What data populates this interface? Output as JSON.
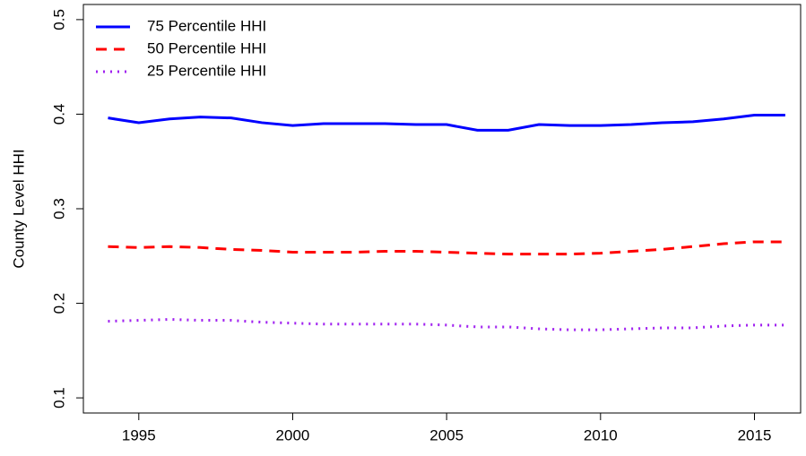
{
  "chart_data": {
    "type": "line",
    "y_label": "County Level HHI",
    "x": [
      1994,
      1995,
      1996,
      1997,
      1998,
      1999,
      2000,
      2001,
      2002,
      2003,
      2004,
      2005,
      2006,
      2007,
      2008,
      2009,
      2010,
      2011,
      2012,
      2013,
      2014,
      2015,
      2016
    ],
    "series": [
      {
        "name": "75 Percentile HHI",
        "color": "#0000ff",
        "dash": "solid",
        "values": [
          0.396,
          0.391,
          0.395,
          0.397,
          0.396,
          0.391,
          0.388,
          0.39,
          0.39,
          0.39,
          0.389,
          0.389,
          0.383,
          0.383,
          0.389,
          0.388,
          0.388,
          0.389,
          0.391,
          0.392,
          0.395,
          0.399,
          0.399
        ]
      },
      {
        "name": "50 Percentile HHI",
        "color": "#ff0000",
        "dash": "dashed",
        "values": [
          0.26,
          0.259,
          0.26,
          0.259,
          0.257,
          0.256,
          0.254,
          0.254,
          0.254,
          0.255,
          0.255,
          0.254,
          0.253,
          0.252,
          0.252,
          0.252,
          0.253,
          0.255,
          0.257,
          0.26,
          0.263,
          0.265,
          0.265
        ]
      },
      {
        "name": "25 Percentile HHI",
        "color": "#a020f0",
        "dash": "dotted",
        "values": [
          0.181,
          0.182,
          0.183,
          0.182,
          0.182,
          0.18,
          0.179,
          0.178,
          0.178,
          0.178,
          0.178,
          0.177,
          0.175,
          0.175,
          0.173,
          0.172,
          0.172,
          0.173,
          0.174,
          0.174,
          0.176,
          0.177,
          0.177
        ]
      }
    ],
    "xlim": [
      1993.2,
      2016.5
    ],
    "ylim": [
      0.084,
      0.516
    ],
    "xticks": [
      1995,
      2000,
      2005,
      2010,
      2015
    ],
    "yticks": [
      0.1,
      0.2,
      0.3,
      0.4,
      0.5
    ],
    "legend": "top-left",
    "grid": false
  }
}
